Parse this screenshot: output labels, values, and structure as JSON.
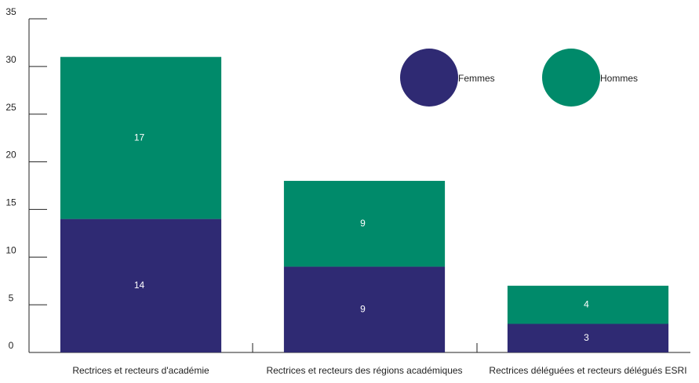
{
  "chart_data": {
    "type": "stacked-bar",
    "categories": [
      "Rectrices et recteurs d'académie",
      "Rectrices et recteurs des régions académiques",
      "Rectrices déléguées et recteurs délégués ESRI"
    ],
    "series": [
      {
        "name": "Femmes",
        "color": "#2f2a73",
        "values": [
          14,
          9,
          3
        ]
      },
      {
        "name": "Hommes",
        "color": "#008a6a",
        "values": [
          17,
          9,
          4
        ]
      }
    ],
    "ylim": [
      0,
      35
    ],
    "yticks": [
      0,
      5,
      10,
      15,
      20,
      25,
      30,
      35
    ]
  }
}
